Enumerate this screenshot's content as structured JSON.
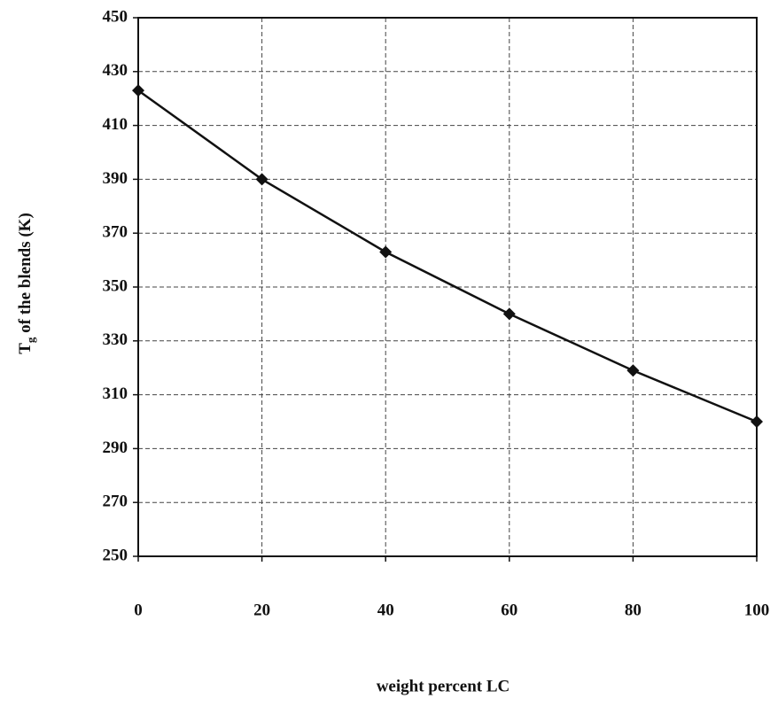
{
  "chart_data": {
    "type": "line",
    "ylabel": [
      "T",
      "g",
      " of the blends (K)"
    ],
    "xlabel": "weight percent LC",
    "x": [
      0,
      20,
      40,
      60,
      80,
      100
    ],
    "series": [
      {
        "color": "#111111",
        "values": [
          423,
          390,
          363,
          340,
          319,
          300
        ]
      }
    ],
    "xlim": [
      0,
      100
    ],
    "xticks": [
      0,
      20,
      40,
      60,
      80,
      100
    ],
    "ylim": [
      250,
      450
    ],
    "yticks": [
      250,
      270,
      290,
      310,
      330,
      350,
      370,
      390,
      410,
      430,
      450
    ],
    "grid": true
  }
}
